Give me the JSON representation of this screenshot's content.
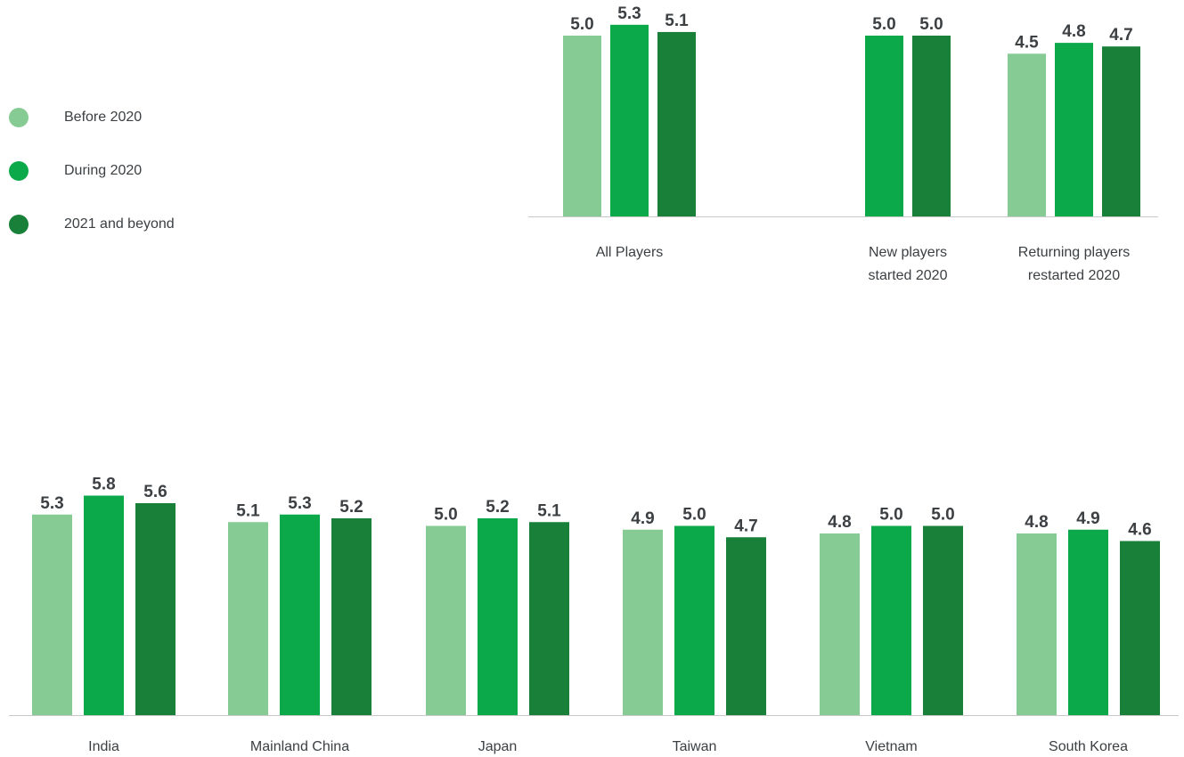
{
  "legend": [
    {
      "label": "Before 2020",
      "color": "#86cb93"
    },
    {
      "label": "During 2020",
      "color": "#0ca94b"
    },
    {
      "label": "2021 and beyond",
      "color": "#188038"
    }
  ],
  "chart_data": [
    {
      "type": "bar",
      "categories": [
        [
          "All Players"
        ],
        [
          "New players",
          "started 2020"
        ],
        [
          "Returning players",
          "restarted 2020"
        ]
      ],
      "series": [
        {
          "name": "Before 2020",
          "values": [
            5.0,
            null,
            4.5
          ]
        },
        {
          "name": "During 2020",
          "values": [
            5.3,
            5.0,
            4.8
          ]
        },
        {
          "name": "2021 and beyond",
          "values": [
            5.1,
            5.0,
            4.7
          ]
        }
      ]
    },
    {
      "type": "bar",
      "categories": [
        [
          "India"
        ],
        [
          "Mainland China"
        ],
        [
          "Japan"
        ],
        [
          "Taiwan"
        ],
        [
          "Vietnam"
        ],
        [
          "South Korea"
        ]
      ],
      "series": [
        {
          "name": "Before 2020",
          "values": [
            5.3,
            5.1,
            5.0,
            4.9,
            4.8,
            4.8
          ]
        },
        {
          "name": "During 2020",
          "values": [
            5.8,
            5.3,
            5.2,
            5.0,
            5.0,
            4.9
          ]
        },
        {
          "name": "2021 and beyond",
          "values": [
            5.6,
            5.2,
            5.1,
            4.7,
            5.0,
            4.6
          ]
        }
      ]
    }
  ]
}
